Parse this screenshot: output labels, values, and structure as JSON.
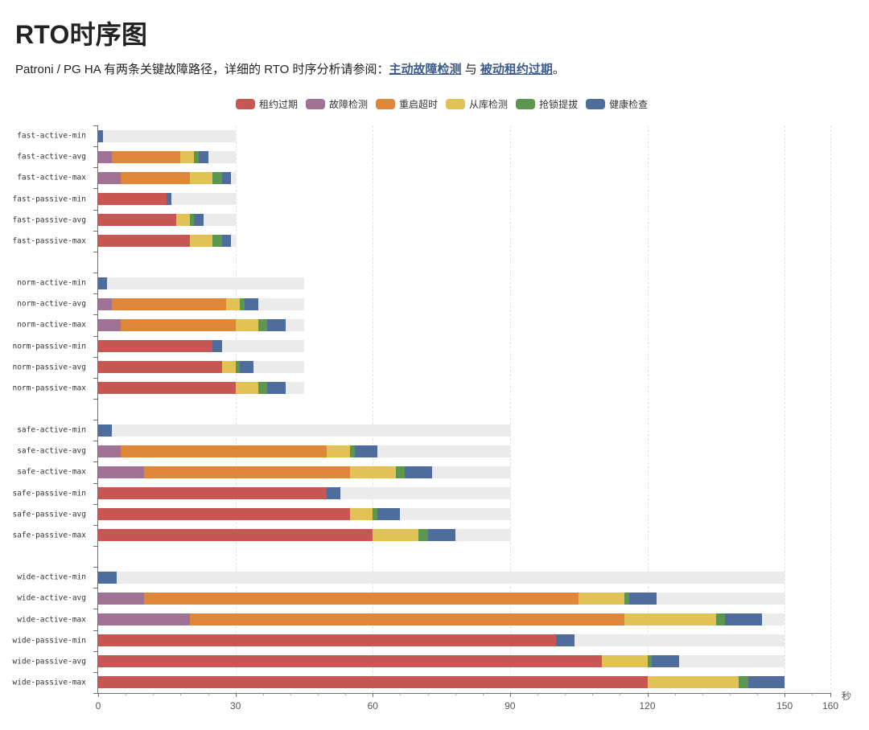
{
  "page": {
    "title": "RTO时序图",
    "intro_prefix": "Patroni / PG HA 有两条关键故障路径，详细的 RTO 时序分析请参阅：",
    "link_active": "主动故障检测",
    "intro_join": " 与 ",
    "link_passive": "被动租约过期",
    "intro_suffix": "。"
  },
  "colors": {
    "lease": "#c85753",
    "detect": "#a07295",
    "restart": "#de8738",
    "replica": "#e2c254",
    "promote": "#5c974f",
    "health": "#4f6d9c",
    "background": "#ebebeb",
    "link": "#3a5a8c"
  },
  "chart_data": {
    "type": "bar",
    "orientation": "horizontal",
    "stacked": true,
    "title": "",
    "xlabel": "秒",
    "ylabel": "",
    "xlim": [
      0,
      160
    ],
    "x_ticks": [
      0,
      30,
      60,
      90,
      120,
      150,
      160
    ],
    "grid": true,
    "legend_position": "top",
    "legend": [
      {
        "key": "lease",
        "label": "租约过期"
      },
      {
        "key": "detect",
        "label": "故障检测"
      },
      {
        "key": "restart",
        "label": "重启超时"
      },
      {
        "key": "replica",
        "label": "从库检测"
      },
      {
        "key": "promote",
        "label": "抢锁提拔"
      },
      {
        "key": "health",
        "label": "健康检查"
      }
    ],
    "categories": [
      "fast-active-min",
      "fast-active-avg",
      "fast-active-max",
      "fast-passive-min",
      "fast-passive-avg",
      "fast-passive-max",
      "",
      "norm-active-min",
      "norm-active-avg",
      "norm-active-max",
      "norm-passive-min",
      "norm-passive-avg",
      "norm-passive-max",
      "",
      "safe-active-min",
      "safe-active-avg",
      "safe-active-max",
      "safe-passive-min",
      "safe-passive-avg",
      "safe-passive-max",
      "",
      "wide-active-min",
      "wide-active-avg",
      "wide-active-max",
      "wide-passive-min",
      "wide-passive-avg",
      "wide-passive-max"
    ],
    "background_limit": [
      30,
      30,
      30,
      30,
      30,
      30,
      null,
      45,
      45,
      45,
      45,
      45,
      45,
      null,
      90,
      90,
      90,
      90,
      90,
      90,
      null,
      150,
      150,
      150,
      150,
      150,
      150
    ],
    "series": [
      {
        "name": "租约过期",
        "key": "lease",
        "values": [
          0,
          0,
          0,
          15,
          17,
          20,
          null,
          0,
          0,
          0,
          25,
          27,
          30,
          null,
          0,
          0,
          0,
          50,
          55,
          60,
          null,
          0,
          0,
          0,
          100,
          110,
          120
        ]
      },
      {
        "name": "故障检测",
        "key": "detect",
        "values": [
          0,
          3,
          5,
          0,
          0,
          0,
          null,
          0,
          3,
          5,
          0,
          0,
          0,
          null,
          0,
          5,
          10,
          0,
          0,
          0,
          null,
          0,
          10,
          20,
          0,
          0,
          0
        ]
      },
      {
        "name": "重启超时",
        "key": "restart",
        "values": [
          0,
          15,
          15,
          0,
          0,
          0,
          null,
          0,
          25,
          25,
          0,
          0,
          0,
          null,
          0,
          45,
          45,
          0,
          0,
          0,
          null,
          0,
          95,
          95,
          0,
          0,
          0
        ]
      },
      {
        "name": "从库检测",
        "key": "replica",
        "values": [
          0,
          3,
          5,
          0,
          3,
          5,
          null,
          0,
          3,
          5,
          0,
          3,
          5,
          null,
          0,
          5,
          10,
          0,
          5,
          10,
          null,
          0,
          10,
          20,
          0,
          10,
          20
        ]
      },
      {
        "name": "抢锁提拔",
        "key": "promote",
        "values": [
          0,
          1,
          2,
          0,
          1,
          2,
          null,
          0,
          1,
          2,
          0,
          1,
          2,
          null,
          0,
          1,
          2,
          0,
          1,
          2,
          null,
          0,
          1,
          2,
          0,
          1,
          2
        ]
      },
      {
        "name": "健康检查",
        "key": "health",
        "values": [
          1,
          2,
          2,
          1,
          2,
          2,
          null,
          2,
          3,
          4,
          2,
          3,
          4,
          null,
          3,
          5,
          6,
          3,
          5,
          6,
          null,
          4,
          6,
          8,
          4,
          6,
          8
        ]
      }
    ]
  }
}
